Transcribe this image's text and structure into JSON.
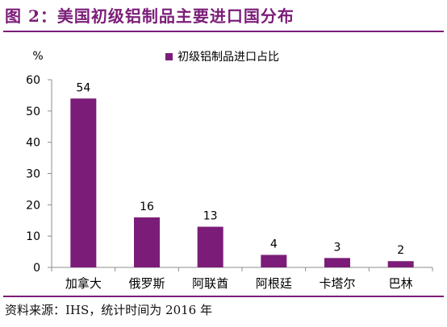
{
  "header": {
    "title": "图 2：美国初级铝制品主要进口国分布"
  },
  "footer": {
    "source": "资料来源：IHS，统计时间为 2016 年"
  },
  "colors": {
    "accent": "#7b1d78",
    "bar": "#7b1d78",
    "axis": "#8c8c8c"
  },
  "chart_data": {
    "type": "bar",
    "title": "",
    "ylabel": "%",
    "xlabel": "",
    "ylim": [
      0,
      60
    ],
    "yticks": [
      0,
      10,
      20,
      30,
      40,
      50,
      60
    ],
    "grid": false,
    "legend": "top",
    "series": [
      {
        "name": "初级铝制品进口占比",
        "values": [
          54,
          16,
          13,
          4,
          3,
          2
        ]
      }
    ],
    "categories": [
      "加拿大",
      "俄罗斯",
      "阿联酋",
      "阿根廷",
      "卡塔尔",
      "巴林"
    ],
    "data_labels": [
      "54",
      "16",
      "13",
      "4",
      "3",
      "2"
    ]
  }
}
